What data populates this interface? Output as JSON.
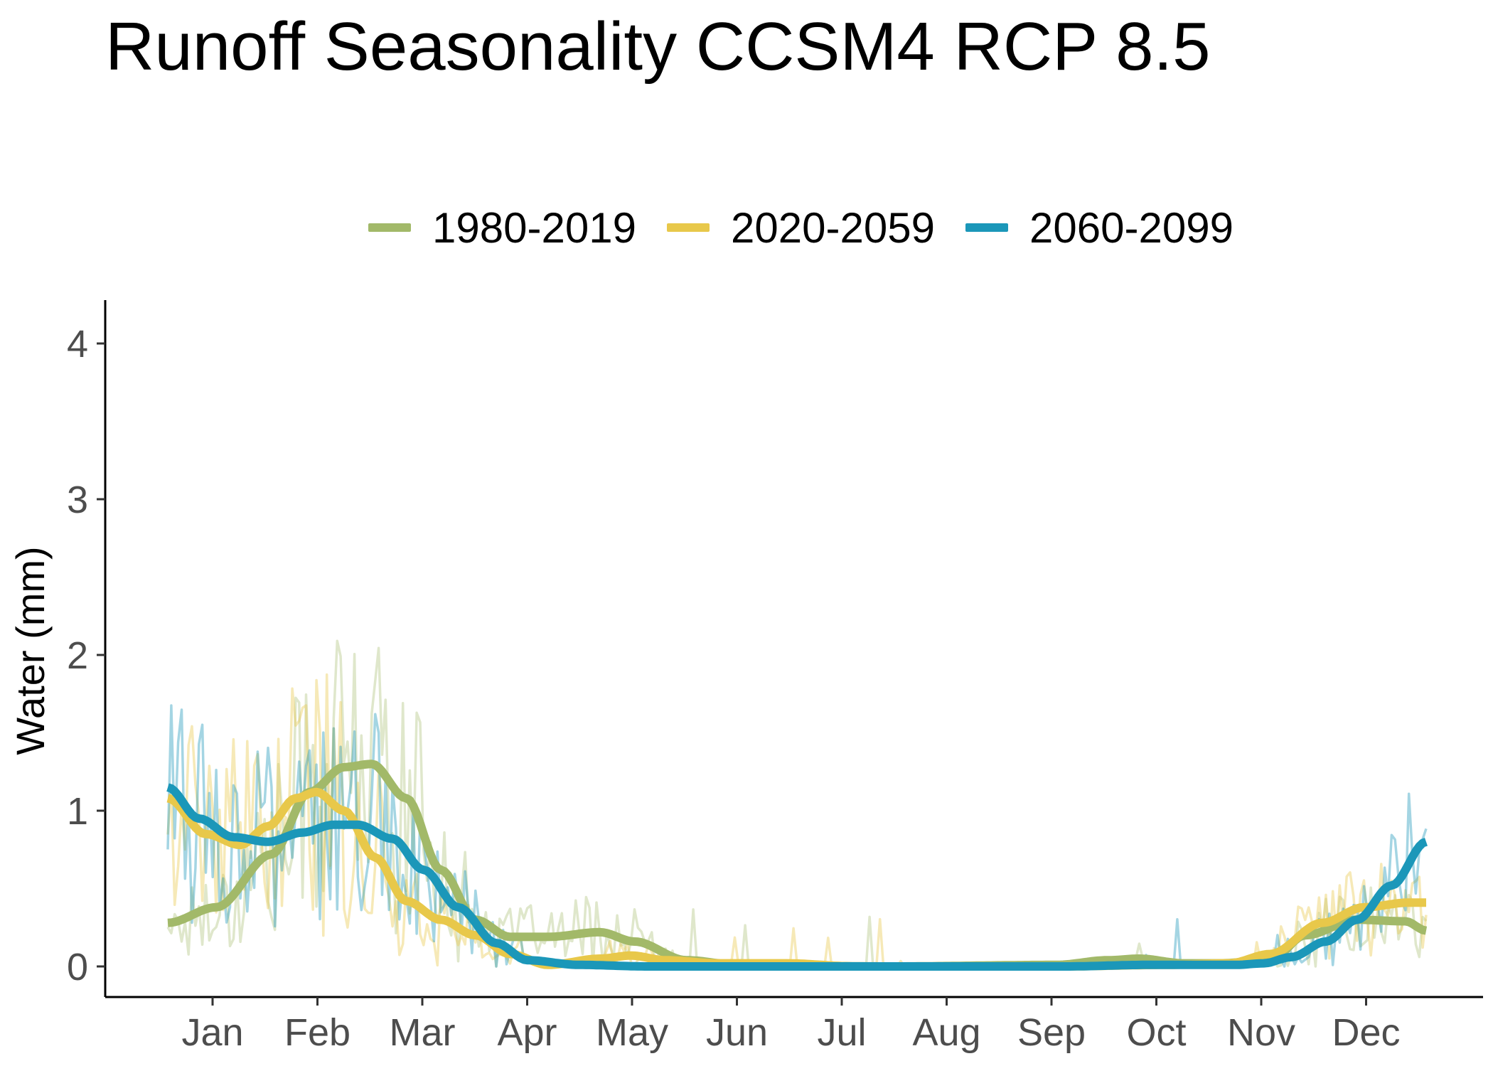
{
  "chart_data": {
    "type": "line",
    "title": "Runoff Seasonality CCSM4 RCP 8.5",
    "xlabel": "",
    "ylabel": "Water (mm)",
    "x_ticks": [
      "Jan",
      "Feb",
      "Mar",
      "Apr",
      "May",
      "Jun",
      "Jul",
      "Aug",
      "Sep",
      "Oct",
      "Nov",
      "Dec"
    ],
    "ylim": [
      -0.2,
      4.25
    ],
    "y_ticks": [
      0,
      1,
      2,
      3,
      4
    ],
    "grid": false,
    "legend_position": "top",
    "x_day_range": [
      1,
      365
    ],
    "series": [
      {
        "name": "1980-2019",
        "color": "#a2b969",
        "smooth_points": [
          [
            1,
            0.28
          ],
          [
            15,
            0.38
          ],
          [
            31,
            0.72
          ],
          [
            42,
            1.12
          ],
          [
            52,
            1.28
          ],
          [
            60,
            1.3
          ],
          [
            70,
            1.08
          ],
          [
            80,
            0.62
          ],
          [
            90,
            0.3
          ],
          [
            100,
            0.19
          ],
          [
            111,
            0.19
          ],
          [
            126,
            0.22
          ],
          [
            136,
            0.16
          ],
          [
            151,
            0.04
          ],
          [
            166,
            0.01
          ],
          [
            210,
            0.0
          ],
          [
            258,
            0.01
          ],
          [
            273,
            0.04
          ],
          [
            282,
            0.05
          ],
          [
            295,
            0.02
          ],
          [
            305,
            0.02
          ],
          [
            320,
            0.04
          ],
          [
            330,
            0.2
          ],
          [
            345,
            0.3
          ],
          [
            359,
            0.29
          ],
          [
            365,
            0.23
          ]
        ]
      },
      {
        "name": "2020-2059",
        "color": "#e8c84a",
        "smooth_points": [
          [
            1,
            1.08
          ],
          [
            12,
            0.85
          ],
          [
            22,
            0.78
          ],
          [
            30,
            0.9
          ],
          [
            38,
            1.08
          ],
          [
            44,
            1.12
          ],
          [
            52,
            1.0
          ],
          [
            61,
            0.7
          ],
          [
            70,
            0.42
          ],
          [
            80,
            0.3
          ],
          [
            90,
            0.2
          ],
          [
            100,
            0.08
          ],
          [
            111,
            0.01
          ],
          [
            126,
            0.05
          ],
          [
            135,
            0.07
          ],
          [
            145,
            0.04
          ],
          [
            160,
            0.02
          ],
          [
            180,
            0.02
          ],
          [
            200,
            0.0
          ],
          [
            258,
            0.0
          ],
          [
            290,
            0.01
          ],
          [
            308,
            0.02
          ],
          [
            320,
            0.08
          ],
          [
            335,
            0.28
          ],
          [
            347,
            0.38
          ],
          [
            360,
            0.41
          ],
          [
            365,
            0.41
          ]
        ]
      },
      {
        "name": "2060-2099",
        "color": "#1b97b9",
        "smooth_points": [
          [
            1,
            1.15
          ],
          [
            10,
            0.95
          ],
          [
            20,
            0.83
          ],
          [
            30,
            0.8
          ],
          [
            40,
            0.86
          ],
          [
            49,
            0.91
          ],
          [
            56,
            0.91
          ],
          [
            66,
            0.82
          ],
          [
            75,
            0.62
          ],
          [
            85,
            0.38
          ],
          [
            96,
            0.15
          ],
          [
            105,
            0.04
          ],
          [
            120,
            0.01
          ],
          [
            140,
            0.0
          ],
          [
            200,
            0.0
          ],
          [
            260,
            0.0
          ],
          [
            285,
            0.01
          ],
          [
            310,
            0.01
          ],
          [
            318,
            0.02
          ],
          [
            326,
            0.06
          ],
          [
            336,
            0.16
          ],
          [
            345,
            0.3
          ],
          [
            355,
            0.52
          ],
          [
            365,
            0.8
          ]
        ]
      }
    ]
  }
}
